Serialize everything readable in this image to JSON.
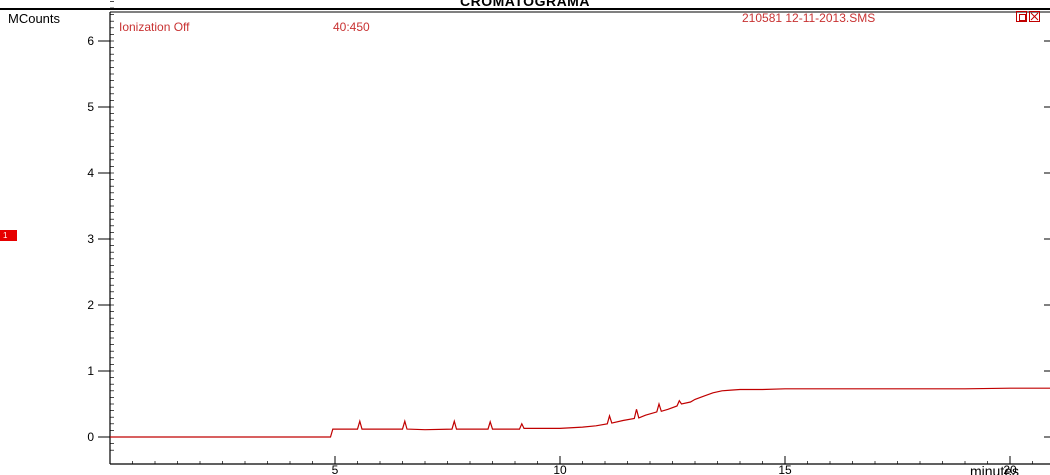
{
  "header": {
    "title": "CROMATOGRAMA"
  },
  "panel": {
    "ionization_label": "Ionization Off",
    "mass_range": "40:450",
    "file_label": "210581 12-11-2013.SMS",
    "trace_marker": "1"
  },
  "colors": {
    "trace": "#c00000",
    "axis": "#000000",
    "annotation": "#c83232",
    "marker": "#e60000"
  },
  "icons": [
    "restore-icon",
    "close-icon"
  ],
  "chart_data": {
    "type": "line",
    "title": "CROMATOGRAMA",
    "ylabel": "MCounts",
    "xlabel": "minutes",
    "xlim": [
      0,
      21
    ],
    "ylim": [
      -0.3,
      6.6
    ],
    "x_ticks": [
      5,
      10,
      15,
      20
    ],
    "y_ticks": [
      0,
      1,
      2,
      3,
      4,
      5,
      6
    ],
    "x_minor_step": 0.5,
    "y_minor_step": 0.1,
    "grid": false,
    "series": [
      {
        "name": "",
        "x": [
          0.0,
          4.9,
          4.95,
          5.0,
          5.5,
          5.55,
          5.6,
          5.8,
          6.5,
          6.55,
          6.6,
          7.0,
          7.6,
          7.65,
          7.7,
          8.4,
          8.45,
          8.5,
          9.1,
          9.15,
          9.2,
          10.0,
          10.5,
          10.8,
          11.05,
          11.1,
          11.15,
          11.4,
          11.65,
          11.7,
          11.75,
          11.9,
          12.15,
          12.2,
          12.25,
          12.4,
          12.6,
          12.65,
          12.7,
          12.9,
          13.0,
          13.2,
          13.4,
          13.6,
          13.8,
          14.0,
          14.5,
          15.0,
          16.0,
          17.0,
          18.0,
          19.0,
          20.0,
          21.0
        ],
        "y": [
          0.0,
          0.0,
          0.12,
          0.12,
          0.12,
          0.24,
          0.12,
          0.12,
          0.12,
          0.24,
          0.12,
          0.11,
          0.12,
          0.24,
          0.12,
          0.12,
          0.23,
          0.12,
          0.12,
          0.2,
          0.13,
          0.13,
          0.15,
          0.17,
          0.2,
          0.32,
          0.21,
          0.25,
          0.28,
          0.42,
          0.29,
          0.33,
          0.38,
          0.5,
          0.39,
          0.42,
          0.47,
          0.55,
          0.5,
          0.53,
          0.57,
          0.62,
          0.67,
          0.7,
          0.71,
          0.72,
          0.72,
          0.73,
          0.73,
          0.73,
          0.73,
          0.73,
          0.74,
          0.74
        ]
      }
    ]
  }
}
